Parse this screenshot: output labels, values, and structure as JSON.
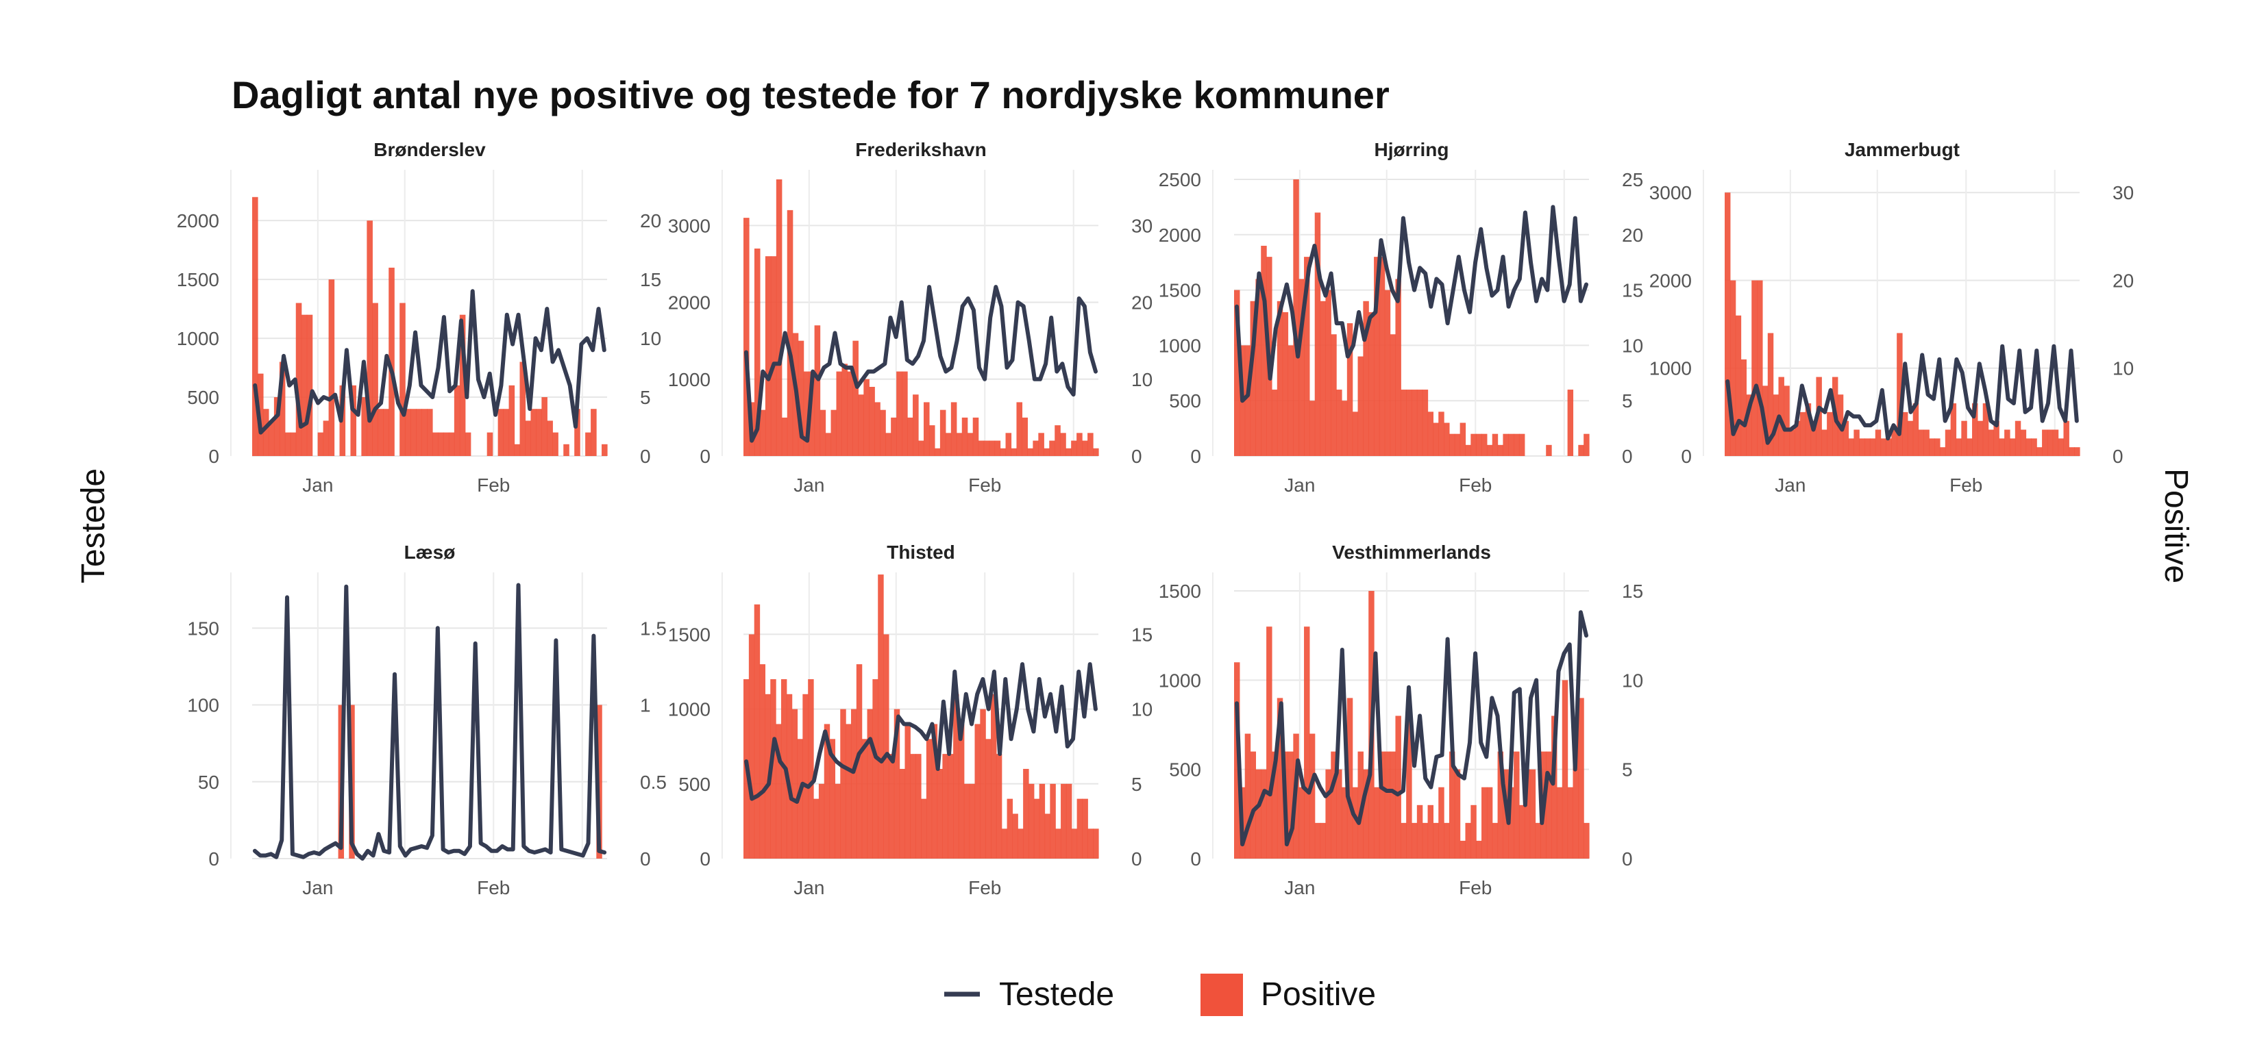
{
  "chart_data": {
    "type": "bar+line (dual axis, small multiples)",
    "title": "Dagligt antal nye positive og testede for 7 nordjyske kommuner",
    "ylabel_left": "Testede",
    "ylabel_right": "Positive",
    "legend": [
      {
        "key": "testede",
        "label": "Testede",
        "type": "line",
        "color": "#353c52"
      },
      {
        "key": "positive",
        "label": "Positive",
        "type": "bar",
        "color": "#f0523b"
      }
    ],
    "legend_position": "bottom",
    "grid": true,
    "x_ticks": [
      "Jan",
      "Feb"
    ],
    "x_range": [
      "2020-12-21",
      "2021-02-28"
    ],
    "panels": [
      {
        "name": "Brønderslev",
        "left_ticks": [
          0,
          500,
          1000,
          1500,
          2000
        ],
        "right_ticks": [
          0,
          5,
          10,
          15,
          20
        ],
        "left_max": 2350,
        "right_max": 23.5,
        "testede": [
          600,
          200,
          250,
          300,
          350,
          850,
          600,
          650,
          250,
          280,
          550,
          450,
          500,
          480,
          520,
          300,
          900,
          400,
          350,
          800,
          300,
          400,
          450,
          850,
          700,
          450,
          350,
          600,
          1050,
          600,
          550,
          500,
          750,
          1180,
          550,
          600,
          1150,
          500,
          1400,
          650,
          500,
          700,
          350,
          600,
          1200,
          950,
          1200,
          800,
          400,
          1000,
          900,
          1250,
          800,
          900,
          750,
          600,
          250,
          950,
          1000,
          900,
          1250,
          900
        ],
        "positive": [
          22,
          7,
          4,
          3,
          5,
          8,
          2,
          2,
          13,
          12,
          12,
          0,
          2,
          3,
          15,
          0,
          6,
          0,
          6,
          0,
          5,
          20,
          13,
          4,
          4,
          16,
          0,
          13,
          4,
          4,
          4,
          4,
          4,
          2,
          2,
          2,
          2,
          6,
          12,
          2,
          0,
          0,
          0,
          2,
          0,
          4,
          4,
          6,
          1,
          8,
          3,
          4,
          4,
          5,
          3,
          2,
          0,
          1,
          0,
          4,
          0,
          2,
          4,
          0,
          1
        ]
      },
      {
        "name": "Frederikshavn",
        "left_ticks": [
          0,
          1000,
          2000,
          3000
        ],
        "right_ticks": [
          0,
          10,
          20,
          30
        ],
        "left_max": 3600,
        "right_max": 36,
        "testede": [
          1350,
          200,
          350,
          1100,
          1000,
          1200,
          1200,
          1600,
          1300,
          850,
          250,
          200,
          1100,
          1000,
          1150,
          1200,
          1600,
          1200,
          1150,
          1150,
          900,
          1000,
          1100,
          1100,
          1150,
          1200,
          1800,
          1550,
          2000,
          1250,
          1200,
          1300,
          1500,
          2200,
          1750,
          1300,
          1100,
          1150,
          1500,
          1950,
          2050,
          1900,
          1150,
          1000,
          1800,
          2200,
          1950,
          1150,
          1250,
          2000,
          1950,
          1500,
          1000,
          1000,
          1200,
          1800,
          1100,
          1200,
          900,
          800,
          2050,
          1950,
          1350,
          1100
        ],
        "positive": [
          31,
          7,
          27,
          6,
          26,
          26,
          36,
          5,
          32,
          16,
          15,
          11,
          11,
          17,
          6,
          3,
          6,
          11,
          12,
          11,
          15,
          8,
          10,
          9,
          7,
          6,
          3,
          5,
          11,
          11,
          5,
          8,
          2,
          7,
          4,
          1,
          6,
          3,
          7,
          3,
          5,
          3,
          5,
          2,
          2,
          2,
          2,
          1,
          3,
          1,
          7,
          5,
          1,
          2,
          3,
          1,
          2,
          4,
          3,
          1,
          2,
          3,
          2,
          3,
          1
        ]
      },
      {
        "name": "Hjørring",
        "left_ticks": [
          0,
          500,
          1000,
          1500,
          2000,
          2500
        ],
        "right_ticks": [
          0,
          5,
          10,
          15,
          20,
          25
        ],
        "left_max": 2500,
        "right_max": 25,
        "testede": [
          1350,
          500,
          550,
          1000,
          1650,
          1400,
          700,
          1150,
          1350,
          1550,
          1300,
          900,
          1300,
          1700,
          1900,
          1600,
          1450,
          1650,
          1200,
          1200,
          900,
          1000,
          1300,
          1050,
          1250,
          1300,
          1950,
          1700,
          1500,
          1400,
          2150,
          1750,
          1500,
          1700,
          1650,
          1350,
          1600,
          1550,
          1200,
          1500,
          1800,
          1500,
          1300,
          1750,
          2050,
          1700,
          1450,
          1500,
          1800,
          1350,
          1500,
          1600,
          2200,
          1750,
          1400,
          1600,
          1500,
          2250,
          1800,
          1400,
          1550,
          2150,
          1400,
          1550
        ],
        "positive": [
          15,
          10,
          10,
          14,
          16,
          19,
          18,
          6,
          14,
          13,
          10,
          25,
          16,
          18,
          5,
          22,
          14,
          15,
          11,
          6,
          5,
          12,
          4,
          9,
          14,
          13,
          18,
          18,
          15,
          11,
          16,
          6,
          6,
          6,
          6,
          6,
          4,
          3,
          4,
          3,
          2,
          2,
          3,
          1,
          2,
          2,
          2,
          1,
          2,
          1,
          2,
          2,
          2,
          2,
          0,
          0,
          0,
          0,
          1,
          0,
          0,
          0,
          6,
          0,
          1,
          2
        ]
      },
      {
        "name": "Jammerbugt",
        "left_ticks": [
          0,
          1000,
          2000,
          3000
        ],
        "right_ticks": [
          0,
          10,
          20,
          30
        ],
        "left_max": 3150,
        "right_max": 31.5,
        "testede": [
          850,
          250,
          400,
          350,
          600,
          800,
          550,
          150,
          250,
          450,
          300,
          300,
          350,
          800,
          550,
          300,
          550,
          500,
          750,
          400,
          300,
          500,
          450,
          450,
          350,
          350,
          400,
          750,
          200,
          350,
          250,
          1050,
          500,
          600,
          1150,
          700,
          650,
          1100,
          400,
          550,
          1100,
          950,
          550,
          450,
          1050,
          750,
          400,
          350,
          1250,
          650,
          600,
          1200,
          500,
          550,
          1200,
          400,
          600,
          1250,
          550,
          400,
          1200,
          400
        ],
        "positive": [
          30,
          20,
          16,
          11,
          7,
          20,
          20,
          8,
          14,
          7,
          9,
          8,
          3,
          4,
          5,
          6,
          4,
          9,
          3,
          5,
          9,
          7,
          4,
          2,
          3,
          2,
          2,
          2,
          3,
          2,
          2,
          3,
          14,
          5,
          4,
          6,
          3,
          3,
          2,
          2,
          1,
          3,
          6,
          2,
          4,
          2,
          6,
          4,
          6,
          3,
          4,
          2,
          3,
          2,
          4,
          3,
          2,
          2,
          1,
          3,
          3,
          3,
          2,
          4,
          1,
          1
        ]
      },
      {
        "name": "Læsø",
        "left_ticks": [
          0,
          50,
          100,
          150
        ],
        "right_ticks": [
          0.0,
          0.5,
          1.0,
          1.5
        ],
        "left_max": 180,
        "right_max": 1.8,
        "testede": [
          5,
          2,
          2,
          3,
          1,
          12,
          170,
          3,
          2,
          1,
          3,
          4,
          3,
          6,
          8,
          10,
          7,
          177,
          10,
          3,
          0,
          5,
          2,
          16,
          5,
          4,
          120,
          8,
          2,
          6,
          7,
          8,
          7,
          15,
          150,
          6,
          4,
          5,
          5,
          3,
          8,
          140,
          10,
          8,
          5,
          5,
          8,
          6,
          6,
          178,
          8,
          5,
          4,
          5,
          6,
          4,
          142,
          6,
          5,
          4,
          3,
          2,
          10,
          145,
          5,
          4
        ],
        "positive": [
          0,
          0,
          0,
          0,
          0,
          0,
          0,
          0,
          0,
          0,
          0,
          0,
          0,
          0,
          0,
          0,
          1,
          0,
          1,
          0,
          0,
          0,
          0,
          0,
          0,
          0,
          0,
          0,
          0,
          0,
          0,
          0,
          0,
          0,
          0,
          0,
          0,
          0,
          0,
          0,
          0,
          0,
          0,
          0,
          0,
          0,
          0,
          0,
          0,
          0,
          0,
          0,
          0,
          0,
          0,
          0,
          0,
          0,
          0,
          0,
          0,
          0,
          0,
          0,
          1,
          0
        ]
      },
      {
        "name": "Thisted",
        "left_ticks": [
          0,
          500,
          1000,
          1500
        ],
        "right_ticks": [
          0,
          5,
          10,
          15
        ],
        "left_max": 1850,
        "right_max": 18.5,
        "testede": [
          650,
          400,
          420,
          450,
          500,
          800,
          650,
          600,
          400,
          380,
          500,
          480,
          520,
          700,
          850,
          700,
          650,
          620,
          600,
          580,
          700,
          750,
          800,
          680,
          650,
          700,
          650,
          950,
          900,
          900,
          880,
          850,
          800,
          900,
          600,
          1050,
          700,
          1250,
          800,
          1100,
          900,
          1100,
          1200,
          1000,
          1250,
          700,
          1200,
          800,
          1000,
          1300,
          1000,
          850,
          1200,
          950,
          1100,
          850,
          1150,
          750,
          800,
          1250,
          950,
          1300,
          1000
        ],
        "positive": [
          12,
          15,
          17,
          13,
          11,
          12,
          9,
          12,
          11,
          10,
          8,
          11,
          12,
          4,
          5,
          9,
          8,
          5,
          10,
          9,
          10,
          13,
          8,
          10,
          12,
          19,
          15,
          7,
          10,
          6,
          9,
          7,
          7,
          4,
          8,
          9,
          6,
          7,
          7,
          11,
          9,
          5,
          5,
          9,
          10,
          8,
          11,
          7,
          2,
          4,
          3,
          2,
          6,
          5,
          4,
          5,
          3,
          5,
          2,
          5,
          5,
          2,
          4,
          4,
          2,
          2
        ]
      },
      {
        "name": "Vesthimmerlands",
        "left_ticks": [
          0,
          500,
          1000,
          1500
        ],
        "right_ticks": [
          0,
          5,
          10,
          15
        ],
        "left_max": 1550,
        "right_max": 15.5,
        "testede": [
          870,
          80,
          180,
          270,
          300,
          380,
          360,
          550,
          870,
          80,
          170,
          550,
          400,
          370,
          470,
          400,
          350,
          380,
          480,
          1170,
          350,
          250,
          200,
          350,
          470,
          1150,
          400,
          380,
          380,
          360,
          380,
          960,
          520,
          800,
          450,
          400,
          570,
          580,
          1230,
          520,
          470,
          450,
          650,
          1150,
          650,
          570,
          900,
          800,
          420,
          200,
          930,
          950,
          300,
          900,
          1000,
          200,
          480,
          420,
          1050,
          1150,
          1200,
          500,
          1380,
          1250
        ],
        "positive": [
          11,
          4,
          7,
          6,
          5,
          5,
          13,
          6,
          9,
          6,
          6,
          7,
          4,
          13,
          7,
          2,
          2,
          5,
          6,
          5,
          4,
          9,
          4,
          6,
          5,
          15,
          4,
          6,
          6,
          6,
          8,
          2,
          8,
          2,
          3,
          2,
          3,
          2,
          4,
          2,
          6,
          5,
          1,
          2,
          3,
          1,
          4,
          4,
          2,
          6,
          5,
          4,
          6,
          3,
          5,
          5,
          2,
          6,
          6,
          8,
          4,
          10,
          4,
          7,
          9,
          2
        ]
      }
    ]
  }
}
